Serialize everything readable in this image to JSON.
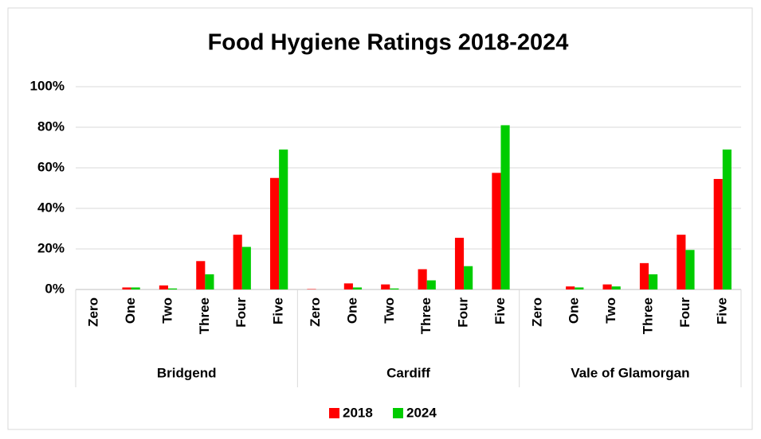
{
  "chart_data": {
    "type": "bar",
    "title": "Food Hygiene Ratings 2018-2024",
    "categories": [
      "Zero",
      "One",
      "Two",
      "Three",
      "Four",
      "Five",
      "Zero",
      "One",
      "Two",
      "Three",
      "Four",
      "Five",
      "Zero",
      "One",
      "Two",
      "Three",
      "Four",
      "Five"
    ],
    "groups": [
      "Bridgend",
      "Cardiff",
      "Vale of Glamorgan"
    ],
    "series": [
      {
        "name": "2018",
        "color": "#ff0000",
        "values": [
          0,
          1,
          2,
          14,
          27,
          55,
          0.2,
          3,
          2.5,
          10,
          25.5,
          57.5,
          0,
          1.5,
          2.5,
          13,
          27,
          54.5
        ]
      },
      {
        "name": "2024",
        "color": "#00cc00",
        "values": [
          0,
          1,
          0.5,
          7.5,
          21,
          69,
          0,
          1,
          0.5,
          4.5,
          11.5,
          81,
          0,
          1,
          1.5,
          7.5,
          19.5,
          69
        ]
      }
    ],
    "ylim": [
      0,
      100
    ],
    "yticks": [
      {
        "value": 0,
        "label": "0%"
      },
      {
        "value": 20,
        "label": "20%"
      },
      {
        "value": 40,
        "label": "40%"
      },
      {
        "value": 60,
        "label": "60%"
      },
      {
        "value": 80,
        "label": "80%"
      },
      {
        "value": 100,
        "label": "100%"
      }
    ],
    "grid": true,
    "legend": "bottom"
  }
}
